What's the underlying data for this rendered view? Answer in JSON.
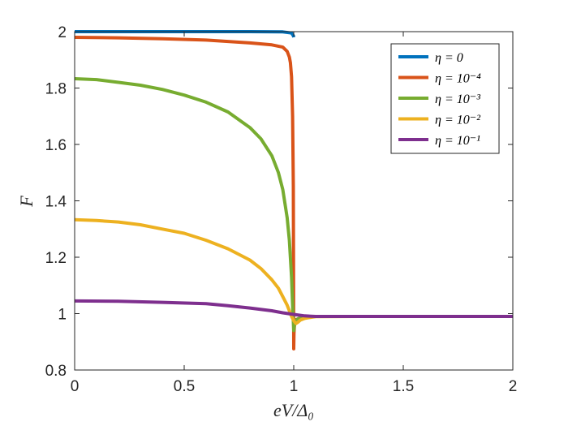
{
  "chart_data": {
    "type": "line",
    "xlabel": "eV/Δ₀",
    "ylabel": "F",
    "xlim": [
      0,
      2
    ],
    "ylim": [
      0.8,
      2
    ],
    "xticks": [
      "0",
      "0.5",
      "1",
      "1.5",
      "2"
    ],
    "yticks": [
      "0.8",
      "1",
      "1.2",
      "1.4",
      "1.6",
      "1.8",
      "2"
    ],
    "grid": false,
    "legend_position": "top-right",
    "series": [
      {
        "name": "η = 0",
        "color": "#0072BD",
        "x": [
          0,
          0.2,
          0.4,
          0.6,
          0.8,
          0.95,
          0.99,
          0.999,
          1.0
        ],
        "y": [
          2.0,
          2.0,
          2.0,
          2.0,
          2.0,
          1.999,
          1.995,
          1.985,
          1.98
        ]
      },
      {
        "name": "η = 10⁻⁴",
        "color": "#D95319",
        "x": [
          0,
          0.2,
          0.4,
          0.6,
          0.8,
          0.9,
          0.95,
          0.97,
          0.98,
          0.985,
          0.99,
          0.995,
          0.998,
          1.0,
          1.001,
          1.003,
          1.006,
          1.01,
          1.03,
          1.06,
          1.1,
          1.3,
          1.6,
          2.0
        ],
        "y": [
          1.98,
          1.978,
          1.975,
          1.97,
          1.96,
          1.953,
          1.945,
          1.93,
          1.91,
          1.89,
          1.84,
          1.7,
          1.45,
          0.875,
          0.93,
          0.955,
          0.97,
          0.978,
          0.985,
          0.988,
          0.99,
          0.99,
          0.99,
          0.99
        ]
      },
      {
        "name": "η = 10⁻³",
        "color": "#77AC30",
        "x": [
          0,
          0.1,
          0.2,
          0.3,
          0.4,
          0.5,
          0.6,
          0.7,
          0.8,
          0.85,
          0.9,
          0.93,
          0.95,
          0.97,
          0.98,
          0.99,
          0.995,
          1.0,
          1.003,
          1.006,
          1.01,
          1.02,
          1.04,
          1.07,
          1.1,
          1.3,
          1.6,
          2.0
        ],
        "y": [
          1.833,
          1.83,
          1.82,
          1.81,
          1.795,
          1.775,
          1.75,
          1.715,
          1.66,
          1.62,
          1.56,
          1.5,
          1.44,
          1.34,
          1.26,
          1.13,
          1.03,
          0.94,
          0.958,
          0.968,
          0.975,
          0.982,
          0.986,
          0.988,
          0.99,
          0.99,
          0.99,
          0.99
        ]
      },
      {
        "name": "η = 10⁻²",
        "color": "#EDB120",
        "x": [
          0,
          0.1,
          0.2,
          0.3,
          0.4,
          0.5,
          0.6,
          0.7,
          0.8,
          0.85,
          0.9,
          0.93,
          0.95,
          0.97,
          0.98,
          0.99,
          1.0,
          1.01,
          1.02,
          1.03,
          1.05,
          1.08,
          1.1,
          1.3,
          1.6,
          2.0
        ],
        "y": [
          1.333,
          1.33,
          1.325,
          1.315,
          1.3,
          1.285,
          1.26,
          1.23,
          1.19,
          1.16,
          1.12,
          1.09,
          1.06,
          1.03,
          1.01,
          0.99,
          0.975,
          0.965,
          0.97,
          0.977,
          0.983,
          0.987,
          0.989,
          0.99,
          0.99,
          0.99
        ]
      },
      {
        "name": "η = 10⁻¹",
        "color": "#7E2F8E",
        "x": [
          0,
          0.2,
          0.4,
          0.6,
          0.7,
          0.8,
          0.9,
          0.95,
          1.0,
          1.05,
          1.1,
          1.2,
          1.4,
          1.7,
          2.0
        ],
        "y": [
          1.045,
          1.044,
          1.04,
          1.035,
          1.028,
          1.02,
          1.01,
          1.003,
          0.997,
          0.992,
          0.99,
          0.99,
          0.99,
          0.99,
          0.99
        ]
      }
    ]
  }
}
